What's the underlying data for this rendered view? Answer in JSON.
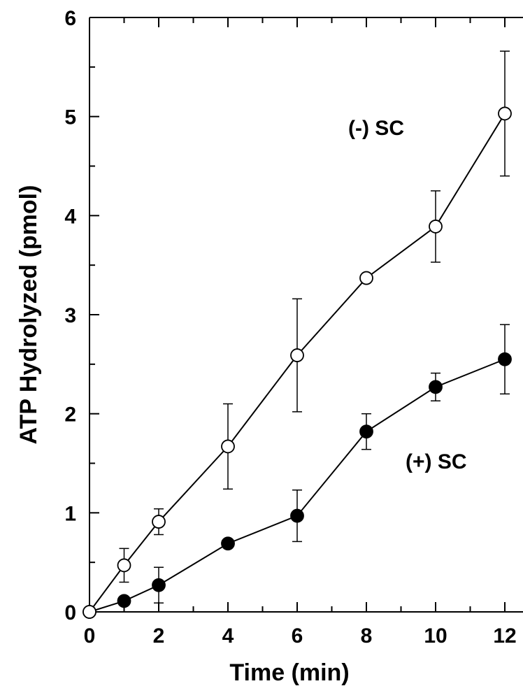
{
  "chart_data": {
    "type": "line",
    "title": "",
    "xlabel": "Time (min)",
    "ylabel": "ATP Hydrolyzed (pmol)",
    "xlim": [
      0,
      12.5
    ],
    "ylim": [
      0,
      6
    ],
    "xticks": [
      0,
      2,
      4,
      6,
      8,
      10,
      12
    ],
    "yticks": [
      0,
      1,
      2,
      3,
      4,
      5,
      6
    ],
    "grid": false,
    "series": [
      {
        "name": "(-) SC",
        "marker": "open-circle",
        "color": "#000000",
        "x": [
          0,
          1,
          2,
          4,
          6,
          8,
          10,
          12
        ],
        "y": [
          0,
          0.47,
          0.91,
          1.67,
          2.59,
          3.37,
          3.89,
          5.03
        ],
        "err": [
          0,
          0.17,
          0.13,
          0.43,
          0.57,
          0,
          0.36,
          0.63
        ]
      },
      {
        "name": "(+) SC",
        "marker": "filled-circle",
        "color": "#000000",
        "x": [
          0,
          1,
          2,
          4,
          6,
          8,
          10,
          12
        ],
        "y": [
          0,
          0.11,
          0.27,
          0.69,
          0.97,
          1.82,
          2.27,
          2.55
        ],
        "err": [
          0,
          0,
          0.18,
          0,
          0.26,
          0.18,
          0.14,
          0.35
        ]
      }
    ]
  }
}
